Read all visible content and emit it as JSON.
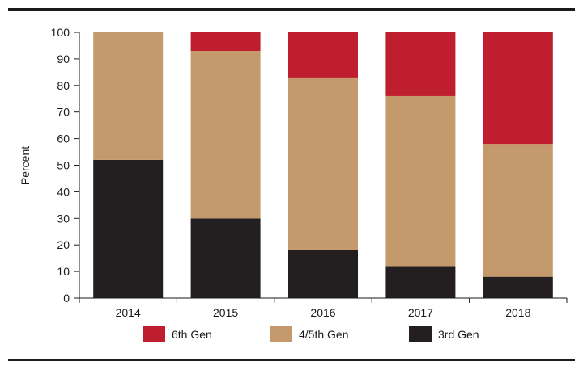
{
  "chart_data": {
    "type": "bar",
    "stacked": true,
    "categories": [
      "2014",
      "2015",
      "2016",
      "2017",
      "2018"
    ],
    "series": [
      {
        "name": "3rd Gen",
        "color": "#231f20",
        "values": [
          52,
          30,
          18,
          12,
          8
        ]
      },
      {
        "name": "4/5th Gen",
        "color": "#c49a6c",
        "values": [
          48,
          63,
          65,
          64,
          50
        ]
      },
      {
        "name": "6th Gen",
        "color": "#be1e2d",
        "values": [
          0,
          7,
          17,
          24,
          42
        ]
      }
    ],
    "legend_order": [
      "6th Gen",
      "4/5th Gen",
      "3rd Gen"
    ],
    "title": "",
    "xlabel": "",
    "ylabel": "Percent",
    "ylim": [
      0,
      100
    ],
    "yticks": [
      0,
      10,
      20,
      30,
      40,
      50,
      60,
      70,
      80,
      90,
      100
    ],
    "grid": false,
    "legend_position": "bottom"
  }
}
